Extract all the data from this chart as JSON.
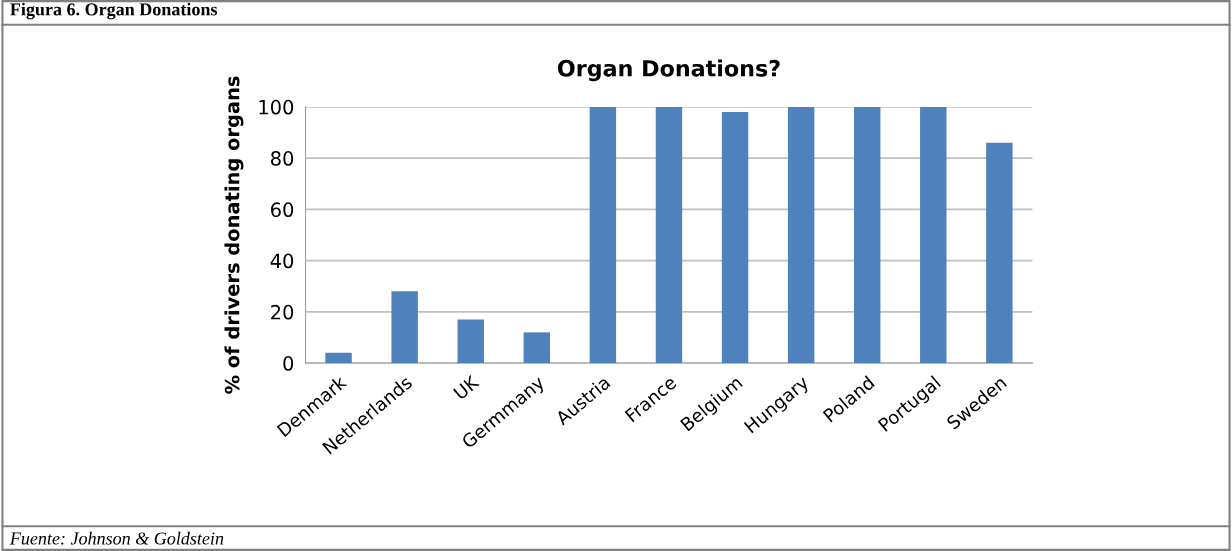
{
  "chart_data": {
    "type": "bar",
    "title": "Organ Donations?",
    "ylabel": "% of drivers donating organs",
    "annotations": [
      "Figura 6. Organ Donations",
      "Fuente: Johnson & Goldstein"
    ],
    "categories": [
      "Denmark",
      "Netherlands",
      "UK",
      "Germmany",
      "Austria",
      "France",
      "Belgium",
      "Hungary",
      "Poland",
      "Portugal",
      "Sweden"
    ],
    "values": [
      4,
      28,
      17,
      12,
      100,
      100,
      98,
      100,
      100,
      100,
      86
    ],
    "color": "#4f81bd",
    "ylim": [
      0,
      100
    ],
    "yticks": [
      0,
      20,
      40,
      60,
      80,
      100
    ],
    "grid": "y",
    "legend": false
  }
}
